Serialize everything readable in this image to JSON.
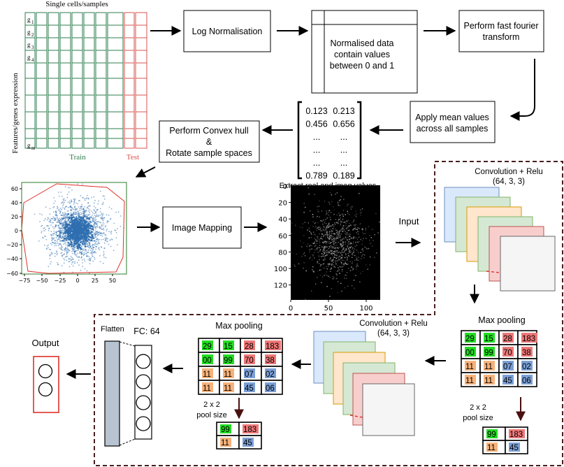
{
  "expression_matrix": {
    "top_label": "Single cells/samples",
    "side_label": "Features/genes expression",
    "gene_labels": [
      "g",
      "g",
      "g",
      "g",
      "g"
    ],
    "gene_subscripts": [
      "1",
      "2",
      "3",
      "4",
      "m"
    ],
    "train_label": "Train",
    "test_label": "Test",
    "train_color": "#2e7d4f",
    "test_color": "#d9534f"
  },
  "steps": {
    "log_norm": "Log Normalisation",
    "normalised_data": [
      "Normalised data",
      "contain values",
      "between 0 and 1"
    ],
    "fft": [
      "Perform fast fourier",
      "transform"
    ],
    "mean_values": [
      "Apply mean values",
      "across all samples"
    ],
    "convex_hull": [
      "Perform Convex hull",
      "&",
      "Rotate sample spaces"
    ],
    "image_mapping": "Image Mapping",
    "extract_label": "Extract real and imag values",
    "input_label": "Input",
    "output_label": "Output"
  },
  "matrix_values": [
    [
      "0.123",
      "0.213"
    ],
    [
      "0.456",
      "0.656"
    ],
    [
      "...",
      "..."
    ],
    [
      "...",
      "..."
    ],
    [
      "...",
      "..."
    ],
    [
      "0.789",
      "0.189"
    ]
  ],
  "scatter": {
    "x_ticks": [
      "−75",
      "−50",
      "−25",
      "0",
      "25",
      "50"
    ],
    "y_ticks": [
      "60",
      "40",
      "20",
      "0",
      "−20",
      "−40",
      "−60"
    ],
    "point_color": "#2f6fb0",
    "hull_color": "#e0302a"
  },
  "image_plot": {
    "x_ticks": [
      "0",
      "50",
      "100"
    ],
    "y_ticks": [
      "0",
      "20",
      "40",
      "60",
      "80",
      "100",
      "120"
    ]
  },
  "cnn": {
    "conv1_label": [
      "Convolution + Relu",
      "(64, 3, 3)"
    ],
    "conv2_label": [
      "Convolution + Relu",
      "(64, 3, 3)"
    ],
    "maxpool_label": "Max pooling",
    "pool_size_label": [
      "2 x 2",
      "pool size"
    ],
    "flatten_label": "Flatten",
    "fc_label": "FC: 64",
    "pool_grid": [
      [
        "29",
        "15",
        "28",
        "183"
      ],
      [
        "00",
        "99",
        "70",
        "38"
      ],
      [
        "11",
        "11",
        "07",
        "02"
      ],
      [
        "11",
        "11",
        "45",
        "06"
      ]
    ],
    "pool_result": [
      [
        "99",
        "183"
      ],
      [
        "11",
        "45"
      ]
    ],
    "cell_colors": {
      "green": "#22dd22",
      "red": "#ee7777",
      "orange": "#f6b27a",
      "blue": "#7b9fd6"
    },
    "filter_colors": [
      "#dae8fc",
      "#d5e8d4",
      "#ffe6cc",
      "#d5e8d4",
      "#f8cecc",
      "#f5f5f5"
    ],
    "dashed_border_color": "#4a1f1f"
  }
}
